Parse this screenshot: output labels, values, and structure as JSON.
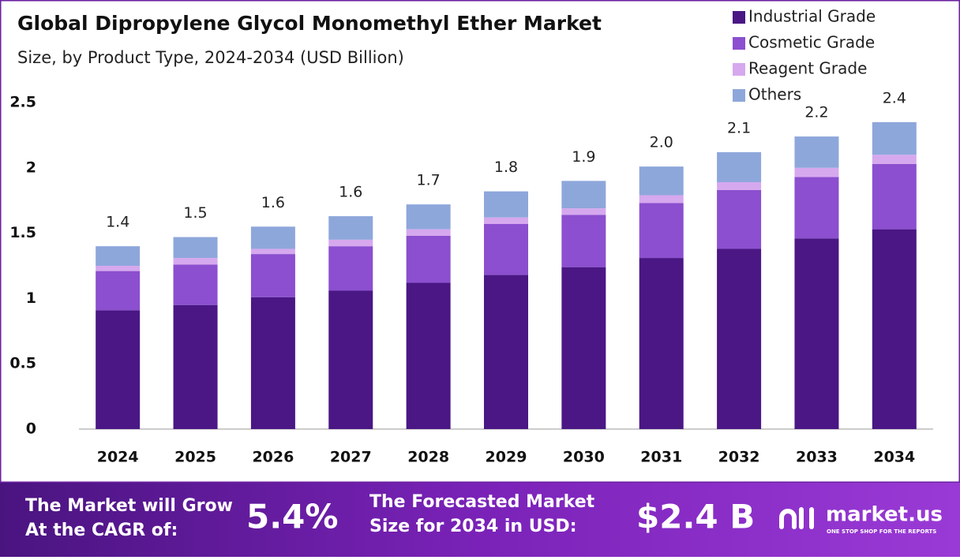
{
  "chart_data": {
    "type": "stacked-bar",
    "title": "Global Dipropylene Glycol Monomethyl Ether Market",
    "subtitle": "Size, by Product Type, 2024-2034 (USD Billion)",
    "categories": [
      "2024",
      "2025",
      "2026",
      "2027",
      "2028",
      "2029",
      "2030",
      "2031",
      "2032",
      "2033",
      "2034"
    ],
    "series": [
      {
        "name": "Industrial Grade",
        "color": "#4a1785",
        "values": [
          0.91,
          0.95,
          1.01,
          1.06,
          1.12,
          1.18,
          1.24,
          1.31,
          1.38,
          1.46,
          1.53
        ]
      },
      {
        "name": "Cosmetic Grade",
        "color": "#8b4fcf",
        "values": [
          0.3,
          0.31,
          0.33,
          0.34,
          0.36,
          0.39,
          0.4,
          0.42,
          0.45,
          0.47,
          0.5
        ]
      },
      {
        "name": "Reagent Grade",
        "color": "#d6a8ee",
        "values": [
          0.04,
          0.05,
          0.04,
          0.05,
          0.05,
          0.05,
          0.05,
          0.06,
          0.06,
          0.07,
          0.07
        ]
      },
      {
        "name": "Others",
        "color": "#8ea7db",
        "values": [
          0.15,
          0.16,
          0.17,
          0.18,
          0.19,
          0.2,
          0.21,
          0.22,
          0.23,
          0.24,
          0.25
        ]
      }
    ],
    "total_labels": [
      "1.4",
      "1.5",
      "1.6",
      "1.6",
      "1.7",
      "1.8",
      "1.9",
      "2.0",
      "2.1",
      "2.2",
      "2.4"
    ],
    "ylim": [
      0,
      2.5
    ],
    "yticks": [
      0,
      0.5,
      1,
      1.5,
      2,
      2.5
    ],
    "grid": false,
    "legend": "top-right"
  },
  "footer": {
    "cagr_line1": "The Market will Grow",
    "cagr_line2": "At the CAGR of:",
    "cagr_value": "5.4%",
    "forecast_line1": "The Forecasted Market",
    "forecast_line2": "Size for 2034 in USD:",
    "forecast_value": "$2.4 B",
    "brand": "market.us",
    "brand_tagline": "ONE STOP SHOP FOR THE REPORTS"
  }
}
